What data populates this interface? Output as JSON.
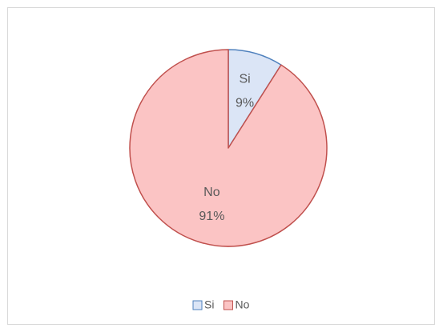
{
  "chart_data": {
    "type": "pie",
    "categories": [
      "Si",
      "No"
    ],
    "values": [
      9,
      91
    ],
    "value_labels": [
      "9%",
      "91%"
    ],
    "colors": [
      "#dbe5f6",
      "#fbc4c4"
    ],
    "edge_colors": [
      "#4f81bd",
      "#c0504d"
    ],
    "legend": "bottom"
  }
}
